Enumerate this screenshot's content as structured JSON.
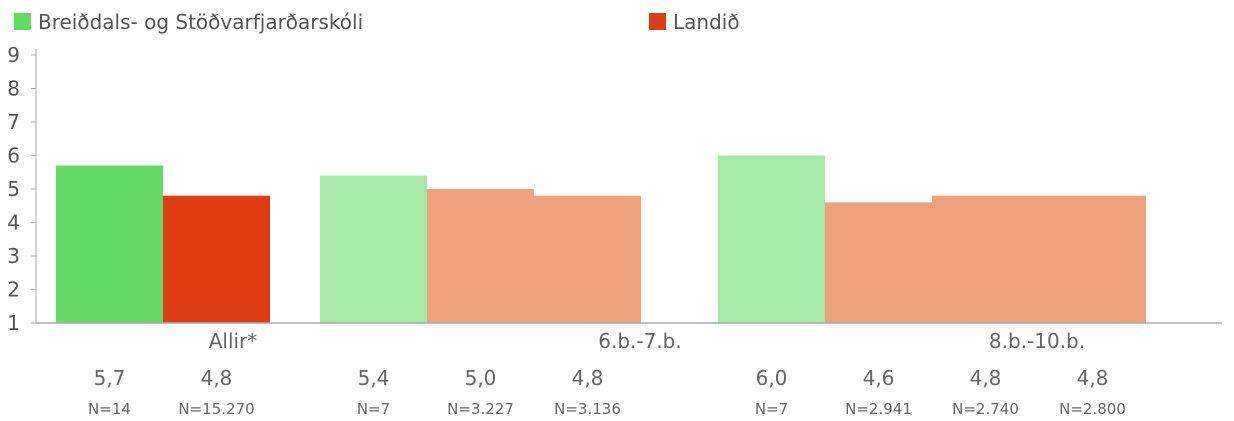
{
  "chart_data": {
    "type": "bar",
    "legend": [
      {
        "label": "Breiðdals- og Stöðvarfjarðarskóli",
        "color": "#63da63"
      },
      {
        "label": "Landið",
        "color": "#dd3c14"
      }
    ],
    "ylim": [
      1,
      9
    ],
    "yticks": [
      "1",
      "2",
      "3",
      "4",
      "5",
      "6",
      "7",
      "8",
      "9"
    ],
    "groups": [
      {
        "label": "Allir*"
      },
      {
        "label": "6.b.-7.b."
      },
      {
        "label": "8.b.-10.b."
      }
    ],
    "bars": [
      {
        "group": 0,
        "value": 5.7,
        "label": "5,7",
        "n": "N=14",
        "color": "#63da63"
      },
      {
        "group": 0,
        "value": 4.8,
        "label": "4,8",
        "n": "N=15.270",
        "color": "#dd3c14"
      },
      {
        "group": 1,
        "value": 5.4,
        "label": "5,4",
        "n": "N=7",
        "color": "#a3e9a3"
      },
      {
        "group": 1,
        "value": 5.0,
        "label": "5,0",
        "n": "N=3.227",
        "color": "#eea27d"
      },
      {
        "group": 1,
        "value": 4.8,
        "label": "4,8",
        "n": "N=3.136",
        "color": "#eea27d"
      },
      {
        "group": 2,
        "value": 6.0,
        "label": "6,0",
        "n": "N=7",
        "color": "#a3e9a3"
      },
      {
        "group": 2,
        "value": 4.6,
        "label": "4,6",
        "n": "N=2.941",
        "color": "#eea27d"
      },
      {
        "group": 2,
        "value": 4.8,
        "label": "4,8",
        "n": "N=2.740",
        "color": "#eea27d"
      },
      {
        "group": 2,
        "value": 4.8,
        "label": "4,8",
        "n": "N=2.800",
        "color": "#eea27d"
      }
    ],
    "axis_color": "#aaaaaa"
  }
}
